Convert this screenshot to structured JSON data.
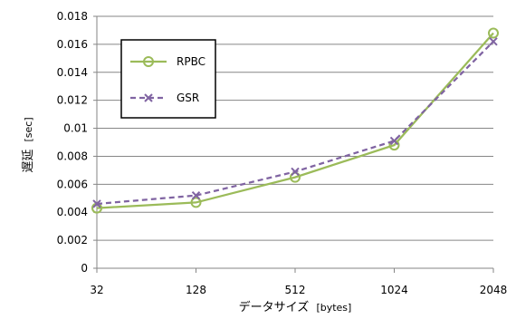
{
  "chart_data": {
    "type": "line",
    "categories": [
      "32",
      "128",
      "512",
      "1024",
      "2048"
    ],
    "xlabel": "データサイズ",
    "xlabel_unit": "[bytes]",
    "ylabel": "遅延",
    "ylabel_unit": "[sec]",
    "ylim": [
      0,
      0.018
    ],
    "yticks": [
      "0.018",
      "0.016",
      "0.014",
      "0.012",
      "0.01",
      "0.008",
      "0.006",
      "0.004",
      "0.002",
      "0"
    ],
    "grid": "horizontal",
    "legend_position": "top-left",
    "series": [
      {
        "name": "RPBC",
        "values": [
          0.0043,
          0.0047,
          0.0065,
          0.0088,
          0.0168
        ],
        "color": "#9bbb59",
        "marker": "circle",
        "dash": "solid"
      },
      {
        "name": "GSR",
        "values": [
          0.0046,
          0.0052,
          0.0069,
          0.0091,
          0.0162
        ],
        "color": "#8064a2",
        "marker": "x",
        "dash": "dashed"
      }
    ]
  }
}
